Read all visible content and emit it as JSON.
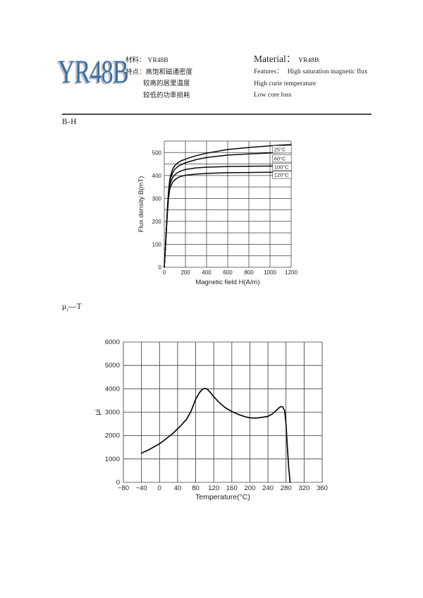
{
  "header": {
    "logo_text": "YR48B",
    "logo_color": "#3d6da6",
    "cn": {
      "material_label": "材料：",
      "material_value": "YR48B",
      "features_label": "特点：",
      "features": [
        "高饱和磁通密度",
        "较高的居里温度",
        "较低的功率损耗"
      ]
    },
    "en": {
      "material_label": "Material：",
      "material_value": "YR48B",
      "features_label": "Features：",
      "features": [
        "High saturation magnetic flux",
        "High curie temperature",
        "Low core loss"
      ]
    }
  },
  "sections": {
    "bh": "B-H",
    "mu_t": {
      "mu": "μ",
      "sub": "i",
      "rest": "—T"
    }
  },
  "chart_data": [
    {
      "type": "line",
      "title": "B-H",
      "xlabel": "Magnetic field H(A/m)",
      "ylabel": "Flux density B(mT)",
      "xlim": [
        0,
        1200
      ],
      "ylim": [
        0,
        550
      ],
      "xgrid": 200,
      "ygrid": 50,
      "xticks": [
        0,
        200,
        400,
        600,
        800,
        1000,
        1200
      ],
      "yticks": [
        0,
        100,
        200,
        300,
        400,
        500
      ],
      "grid": true,
      "x": [
        0,
        10,
        20,
        30,
        40,
        50,
        60,
        80,
        100,
        130,
        160,
        200,
        300,
        400,
        600,
        800,
        1000,
        1200
      ],
      "series": [
        {
          "name": "25°C",
          "values": [
            0,
            80,
            170,
            260,
            330,
            375,
            400,
            428,
            443,
            456,
            464,
            471,
            486,
            497,
            513,
            522,
            529,
            535
          ]
        },
        {
          "name": "60°C",
          "values": [
            0,
            80,
            168,
            255,
            322,
            365,
            388,
            413,
            427,
            440,
            447,
            455,
            469,
            478,
            489,
            494,
            498,
            500
          ]
        },
        {
          "name": "100°C",
          "values": [
            0,
            78,
            165,
            248,
            310,
            350,
            370,
            392,
            403,
            414,
            420,
            426,
            433,
            436,
            439,
            440,
            441,
            442
          ]
        },
        {
          "name": "120°C",
          "values": [
            0,
            76,
            160,
            240,
            298,
            335,
            352,
            371,
            381,
            391,
            396,
            401,
            406,
            409,
            412,
            413,
            414,
            415
          ]
        }
      ],
      "curve_labels": [
        {
          "text": "25°C",
          "x": 1025,
          "y": 514
        },
        {
          "text": "60°C",
          "x": 1025,
          "y": 474
        },
        {
          "text": "100°C",
          "x": 1025,
          "y": 437
        },
        {
          "text": "120°C",
          "x": 1025,
          "y": 403
        }
      ]
    },
    {
      "type": "line",
      "title": "μi—T",
      "xlabel": "Temperature(°C)",
      "ylabel": "μi",
      "xlim": [
        -80,
        360
      ],
      "ylim": [
        0,
        6000
      ],
      "xgrid": 40,
      "ygrid": 1000,
      "xticks": [
        -80,
        -40,
        0,
        40,
        80,
        120,
        160,
        200,
        240,
        280,
        320,
        360
      ],
      "xtick_labels": [
        "−80",
        "−40",
        "0",
        "40",
        "80",
        "120",
        "160",
        "200",
        "240",
        "280",
        "320",
        "360"
      ],
      "yticks": [
        0,
        1000,
        2000,
        3000,
        4000,
        5000,
        6000
      ],
      "grid": true,
      "series": [
        {
          "name": "μi",
          "x": [
            -40,
            -25,
            -10,
            0,
            15,
            30,
            45,
            60,
            70,
            80,
            88,
            95,
            100,
            106,
            112,
            120,
            130,
            145,
            160,
            175,
            190,
            200,
            215,
            230,
            240,
            250,
            258,
            264,
            269,
            273,
            277,
            280,
            283,
            286,
            289
          ],
          "values": [
            1250,
            1380,
            1540,
            1650,
            1870,
            2100,
            2380,
            2700,
            3050,
            3550,
            3830,
            3980,
            4020,
            3980,
            3850,
            3660,
            3450,
            3200,
            3030,
            2900,
            2800,
            2760,
            2750,
            2790,
            2820,
            2930,
            3070,
            3180,
            3245,
            3220,
            3050,
            2500,
            1500,
            600,
            0
          ]
        }
      ]
    }
  ]
}
